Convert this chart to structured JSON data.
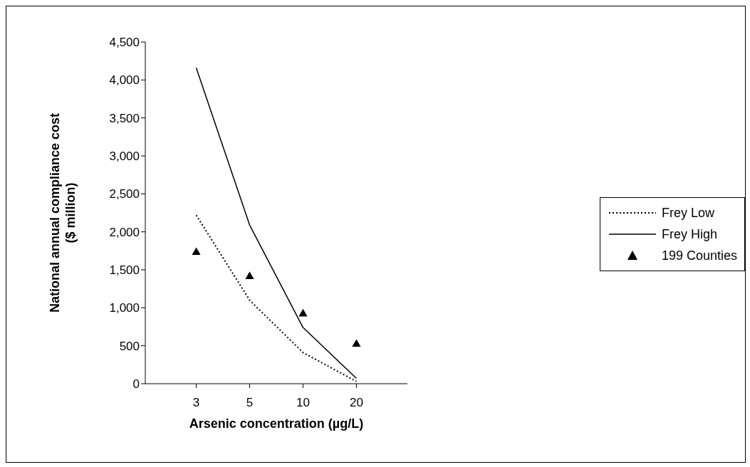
{
  "chart_data": {
    "type": "line",
    "xlabel": "Arsenic concentration (µg/L)",
    "ylabel": "National annual compliance cost ($ million)",
    "categories": [
      "3",
      "5",
      "10",
      "20"
    ],
    "ylim": [
      0,
      4500
    ],
    "yticks": [
      {
        "value": 0,
        "label": "0"
      },
      {
        "value": 500,
        "label": "500"
      },
      {
        "value": 1000,
        "label": "1,000"
      },
      {
        "value": 1500,
        "label": "1,500"
      },
      {
        "value": 2000,
        "label": "2,000"
      },
      {
        "value": 2500,
        "label": "2,500"
      },
      {
        "value": 3000,
        "label": "3,000"
      },
      {
        "value": 3500,
        "label": "3,500"
      },
      {
        "value": 4000,
        "label": "4,000"
      },
      {
        "value": 4500,
        "label": "4,500"
      }
    ],
    "grid": false,
    "legend": "right",
    "series": [
      {
        "name": "Frey Low",
        "color": "#000000",
        "line_style": "dotted",
        "marker": "none",
        "values": [
          2220,
          1100,
          410,
          30
        ]
      },
      {
        "name": "Frey High",
        "color": "#000000",
        "line_style": "solid",
        "marker": "none",
        "values": [
          4160,
          2090,
          740,
          70
        ]
      },
      {
        "name": "199 Counties",
        "type": "scatter",
        "color": "#000000",
        "marker": "triangle",
        "values": [
          1730,
          1410,
          920,
          520
        ]
      }
    ]
  }
}
